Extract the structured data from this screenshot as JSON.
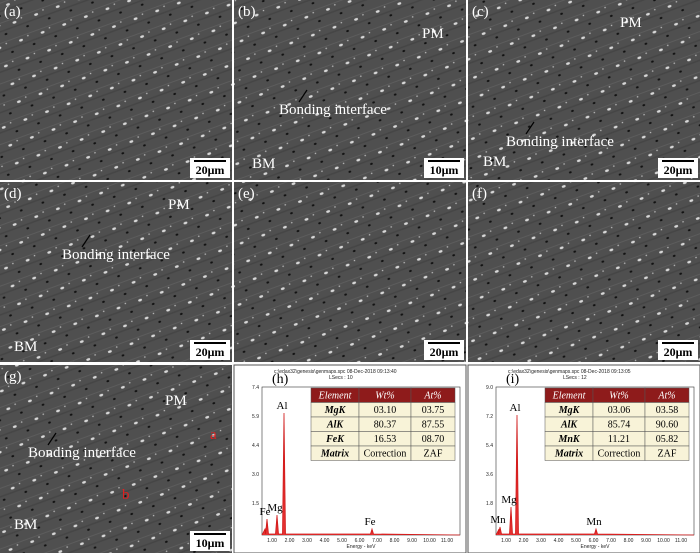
{
  "panels": [
    {
      "label": "(a)",
      "scale": "20μm",
      "notes": []
    },
    {
      "label": "(b)",
      "scale": "10μm",
      "notes": [
        "PM",
        "Bonding interface",
        "BM"
      ]
    },
    {
      "label": "(c)",
      "scale": "20μm",
      "notes": [
        "PM",
        "Bonding interface",
        "BM"
      ]
    },
    {
      "label": "(d)",
      "scale": "20μm",
      "notes": [
        "PM",
        "Bonding interface",
        "BM"
      ]
    },
    {
      "label": "(e)",
      "scale": "20μm",
      "notes": []
    },
    {
      "label": "(f)",
      "scale": "20μm",
      "notes": []
    },
    {
      "label": "(g)",
      "scale": "10μm",
      "notes": [
        "PM",
        "Bonding interface",
        "BM",
        "a",
        "b"
      ]
    }
  ],
  "spectra": [
    {
      "label": "(h)",
      "file": "c:\\edax32\\genesis\\genmaps.spc 08-Dec-2018 09:13:40",
      "lsecs": "LSecs : 10",
      "yticks": [
        "7.4",
        "5.9",
        "4.4",
        "3.0",
        "1.5"
      ],
      "xlabel": "Energy - keV",
      "xticks": [
        "1.00",
        "2.00",
        "3.00",
        "4.00",
        "5.00",
        "6.00",
        "7.00",
        "8.00",
        "9.00",
        "10.00",
        "11.00"
      ],
      "peaks": [
        "Fe",
        "Mg",
        "Al",
        "Fe"
      ],
      "table": {
        "header": [
          "Element",
          "Wt%",
          "At%"
        ],
        "rows": [
          [
            "MgK",
            "03.10",
            "03.75"
          ],
          [
            "AlK",
            "80.37",
            "87.55"
          ],
          [
            "FeK",
            "16.53",
            "08.70"
          ],
          [
            "Matrix",
            "Correction",
            "ZAF"
          ]
        ]
      }
    },
    {
      "label": "(i)",
      "file": "c:\\edax32\\genesis\\genmaps.spc 08-Dec-2018 09:13:05",
      "lsecs": "LSecs : 12",
      "yticks": [
        "9.0",
        "7.2",
        "5.4",
        "3.6",
        "1.8"
      ],
      "xlabel": "Energy - keV",
      "xticks": [
        "1.00",
        "2.00",
        "3.00",
        "4.00",
        "5.00",
        "6.00",
        "7.00",
        "8.00",
        "9.00",
        "10.00",
        "11.00"
      ],
      "peaks": [
        "Mn",
        "Mg",
        "Al",
        "Mn"
      ],
      "table": {
        "header": [
          "Element",
          "Wt%",
          "At%"
        ],
        "rows": [
          [
            "MgK",
            "03.06",
            "03.58"
          ],
          [
            "AlK",
            "85.74",
            "90.60"
          ],
          [
            "MnK",
            "11.21",
            "05.82"
          ],
          [
            "Matrix",
            "Correction",
            "ZAF"
          ]
        ]
      }
    }
  ]
}
